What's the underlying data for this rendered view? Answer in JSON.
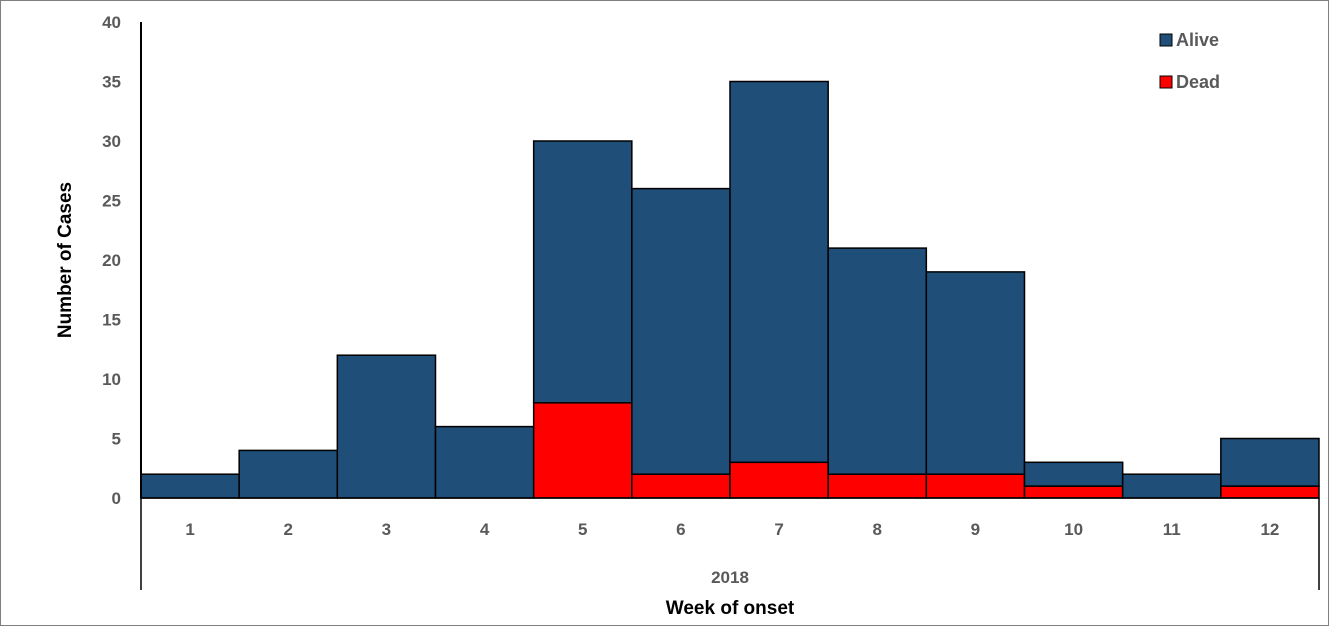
{
  "chart_data": {
    "type": "bar",
    "stacked": true,
    "categories": [
      "1",
      "2",
      "3",
      "4",
      "5",
      "6",
      "7",
      "8",
      "9",
      "10",
      "11",
      "12"
    ],
    "group_label": "2018",
    "series": [
      {
        "name": "Dead",
        "color": "#ff0000",
        "values": [
          0,
          0,
          0,
          0,
          8,
          2,
          3,
          2,
          2,
          1,
          0,
          1
        ]
      },
      {
        "name": "Alive",
        "color": "#1f4e79",
        "values": [
          2,
          4,
          12,
          6,
          22,
          24,
          32,
          19,
          17,
          2,
          2,
          4
        ]
      }
    ],
    "legend_order": [
      "Alive",
      "Dead"
    ],
    "legend_position": "top-right",
    "xlabel": "Week of onset",
    "ylabel": "Number of Cases",
    "ylim": [
      0,
      40
    ],
    "yticks": [
      0,
      5,
      10,
      15,
      20,
      25,
      30,
      35,
      40
    ],
    "grid": false
  }
}
